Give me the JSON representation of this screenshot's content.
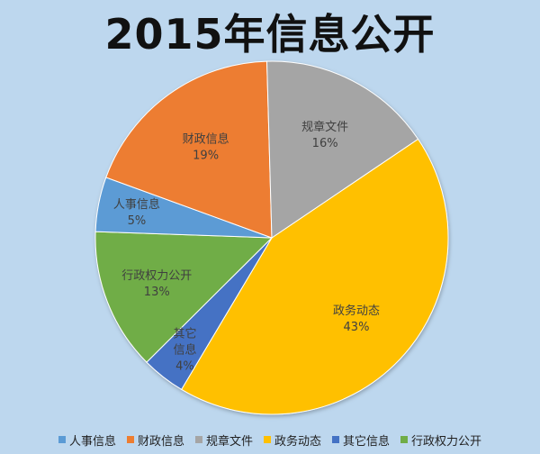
{
  "chart_data": {
    "type": "pie",
    "title": "2015年信息公开",
    "slices": [
      {
        "label": "政务动态",
        "percent_label": "43%",
        "value": 43,
        "color": "#ffc000"
      },
      {
        "label": "其它信息",
        "percent_label": "4%",
        "value": 4,
        "color": "#4472c4"
      },
      {
        "label": "行政权力公开",
        "percent_label": "13%",
        "value": 13,
        "color": "#70ad47"
      },
      {
        "label": "人事信息",
        "percent_label": "5%",
        "value": 5,
        "color": "#5b9bd5"
      },
      {
        "label": "财政信息",
        "percent_label": "19%",
        "value": 19,
        "color": "#ed7d31"
      },
      {
        "label": "规章文件",
        "percent_label": "16%",
        "value": 16,
        "color": "#a5a5a5"
      }
    ],
    "legend": {
      "placement": "bottom",
      "items": [
        {
          "label": "人事信息",
          "color": "#5b9bd5"
        },
        {
          "label": "财政信息",
          "color": "#ed7d31"
        },
        {
          "label": "规章文件",
          "color": "#a5a5a5"
        },
        {
          "label": "政务动态",
          "color": "#ffc000"
        },
        {
          "label": "其它信息",
          "color": "#4472c4"
        },
        {
          "label": "行政权力公开",
          "color": "#70ad47"
        }
      ]
    }
  }
}
